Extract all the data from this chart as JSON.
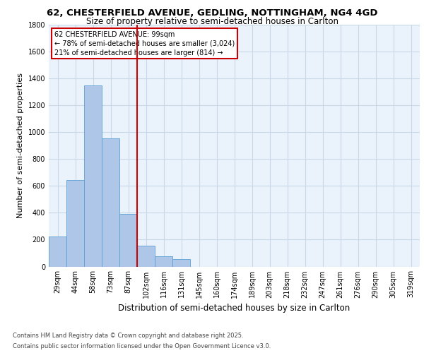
{
  "title1": "62, CHESTERFIELD AVENUE, GEDLING, NOTTINGHAM, NG4 4GD",
  "title2": "Size of property relative to semi-detached houses in Carlton",
  "xlabel": "Distribution of semi-detached houses by size in Carlton",
  "ylabel": "Number of semi-detached properties",
  "bar_labels": [
    "29sqm",
    "44sqm",
    "58sqm",
    "73sqm",
    "87sqm",
    "102sqm",
    "116sqm",
    "131sqm",
    "145sqm",
    "160sqm",
    "174sqm",
    "189sqm",
    "203sqm",
    "218sqm",
    "232sqm",
    "247sqm",
    "261sqm",
    "276sqm",
    "290sqm",
    "305sqm",
    "319sqm"
  ],
  "bar_values": [
    225,
    645,
    1350,
    955,
    390,
    155,
    75,
    55,
    0,
    0,
    0,
    0,
    0,
    0,
    0,
    0,
    0,
    0,
    0,
    0,
    0
  ],
  "bar_color": "#aec6e8",
  "bar_edge_color": "#5a9fd4",
  "grid_color": "#c8d8e8",
  "background_color": "#eaf3fb",
  "vline_index": 5,
  "vline_color": "#cc0000",
  "annotation_title": "62 CHESTERFIELD AVENUE: 99sqm",
  "annotation_line1": "← 78% of semi-detached houses are smaller (3,024)",
  "annotation_line2": "21% of semi-detached houses are larger (814) →",
  "annotation_box_color": "#cc0000",
  "ylim": [
    0,
    1800
  ],
  "yticks": [
    0,
    200,
    400,
    600,
    800,
    1000,
    1200,
    1400,
    1600,
    1800
  ],
  "footer1": "Contains HM Land Registry data © Crown copyright and database right 2025.",
  "footer2": "Contains public sector information licensed under the Open Government Licence v3.0.",
  "title1_fontsize": 9.5,
  "title2_fontsize": 8.5,
  "ylabel_fontsize": 8,
  "xlabel_fontsize": 8.5,
  "tick_fontsize": 7,
  "footer_fontsize": 6
}
